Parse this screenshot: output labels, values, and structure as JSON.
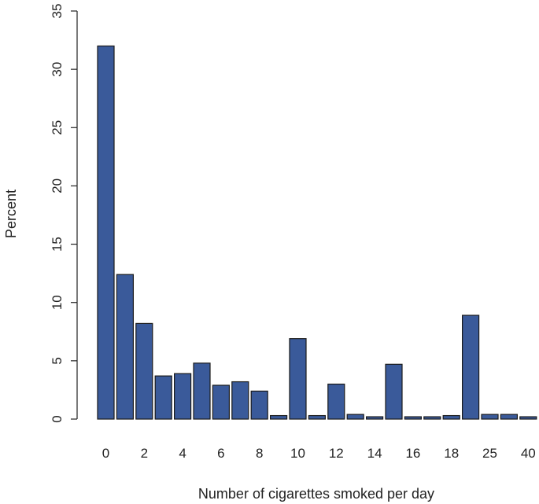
{
  "chart_data": {
    "type": "bar",
    "categories": [
      "0",
      "1",
      "2",
      "3",
      "4",
      "5",
      "6",
      "7",
      "8",
      "9",
      "10",
      "11",
      "12",
      "13",
      "14",
      "15",
      "16",
      "17",
      "18",
      "20",
      "25",
      "30",
      "40"
    ],
    "x_tick_labels": [
      "0",
      "2",
      "4",
      "6",
      "8",
      "10",
      "12",
      "14",
      "16",
      "18",
      "25",
      "40"
    ],
    "values": [
      32.0,
      12.4,
      8.2,
      3.7,
      3.9,
      4.8,
      2.9,
      3.2,
      2.4,
      0.3,
      6.9,
      0.3,
      3.0,
      0.4,
      0.2,
      4.7,
      0.2,
      0.2,
      0.3,
      8.9,
      0.4,
      0.4,
      0.2
    ],
    "title": "",
    "xlabel": "Number of cigarettes smoked per day",
    "ylabel": "Percent",
    "ylim": [
      0,
      35
    ],
    "y_ticks": [
      0,
      5,
      10,
      15,
      20,
      25,
      30,
      35
    ],
    "bar_color": "#3a5a9a",
    "grid": false,
    "legend": "none"
  }
}
